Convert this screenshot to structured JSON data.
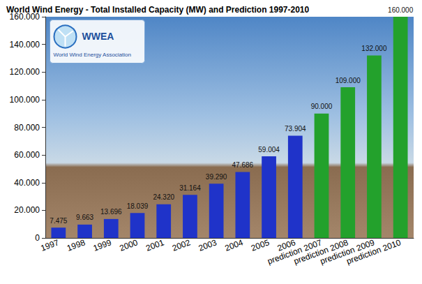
{
  "chart_data": {
    "type": "bar",
    "title": "World Wind Energy - Total Installed Capacity (MW) and Prediction 1997-2010",
    "annotations": [
      "WWEA",
      "World Wind Energy Association"
    ],
    "categories": [
      "1997",
      "1998",
      "1999",
      "2000",
      "2001",
      "2002",
      "2003",
      "2004",
      "2005",
      "2006",
      "prediction 2007",
      "prediction 2008",
      "prediction 2009",
      "prediction 2010"
    ],
    "values": [
      7475,
      9663,
      13696,
      18039,
      24320,
      31164,
      39290,
      47686,
      59004,
      73904,
      90000,
      109000,
      132000,
      160000
    ],
    "value_labels": [
      "7.475",
      "9.663",
      "13.696",
      "18.039",
      "24.320",
      "31.164",
      "39.290",
      "47.686",
      "59.004",
      "73.904",
      "90.000",
      "109.000",
      "132.000",
      "160.000"
    ],
    "colors": [
      "#1f33c9",
      "#1f33c9",
      "#1f33c9",
      "#1f33c9",
      "#1f33c9",
      "#1f33c9",
      "#1f33c9",
      "#1f33c9",
      "#1f33c9",
      "#1f33c9",
      "#23a12c",
      "#23a12c",
      "#23a12c",
      "#23a12c"
    ],
    "data_labels": true,
    "ylim": [
      0,
      160000
    ],
    "yticks": [
      0,
      {
        "value": 20000,
        "label": "20.000"
      },
      {
        "value": 40000,
        "label": "40.000"
      },
      {
        "value": 60000,
        "label": "60.000"
      },
      {
        "value": 80000,
        "label": "80.000"
      },
      {
        "value": 100000,
        "label": "100.000"
      },
      {
        "value": 120000,
        "label": "120.000"
      },
      {
        "value": 140000,
        "label": "140.000"
      },
      {
        "value": 160000,
        "label": "160.000"
      }
    ],
    "grid": false
  }
}
